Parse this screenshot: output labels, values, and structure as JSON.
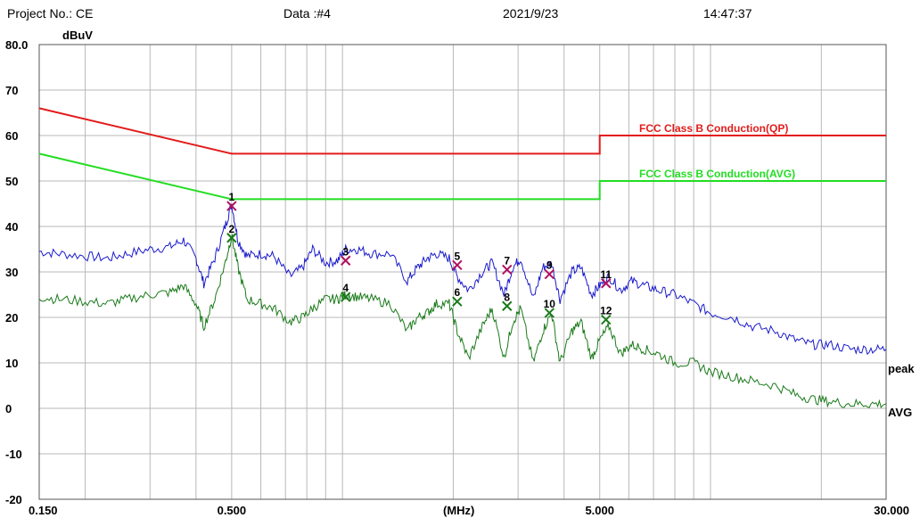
{
  "header": {
    "project": "Project No.: CE",
    "data": "Data :#4",
    "date": "2021/9/23",
    "time": "14:47:37"
  },
  "colors": {
    "qp": "#e31b1b",
    "avg": "#22dd22",
    "peak": "#1a1acc",
    "avg_trace": "#1a7a1a",
    "marker_peak": "#b01060",
    "grid": "#b8b8b8"
  },
  "chart_data": {
    "type": "line",
    "title": "",
    "ylabel": "dBuV",
    "xlabel": "(MHz)",
    "xscale": "log",
    "xlim": [
      0.15,
      30
    ],
    "ylim": [
      -20,
      80
    ],
    "y_ticks": [
      "80.0",
      "70",
      "60",
      "50",
      "40",
      "30",
      "20",
      "10",
      "0",
      "-10",
      "-20"
    ],
    "x_ticks": [
      "0.150",
      "0.500",
      "5.000",
      "30.000"
    ],
    "grid": true,
    "limits": [
      {
        "name": "FCC Class B Conduction(QP)",
        "x": [
          0.15,
          0.5,
          5,
          5,
          30
        ],
        "y": [
          66,
          56,
          56,
          60,
          60
        ]
      },
      {
        "name": "FCC Class B Conduction(AVG)",
        "x": [
          0.15,
          0.5,
          5,
          5,
          30
        ],
        "y": [
          56,
          46,
          46,
          50,
          50
        ]
      }
    ],
    "series": [
      {
        "name": "peak",
        "x": [
          0.15,
          0.17,
          0.2,
          0.23,
          0.26,
          0.3,
          0.34,
          0.37,
          0.4,
          0.42,
          0.45,
          0.48,
          0.5,
          0.52,
          0.55,
          0.6,
          0.65,
          0.72,
          0.78,
          0.83,
          0.9,
          0.97,
          1.02,
          1.1,
          1.2,
          1.35,
          1.5,
          1.6,
          1.7,
          1.8,
          1.95,
          2.05,
          2.2,
          2.4,
          2.55,
          2.75,
          2.9,
          3.05,
          3.3,
          3.5,
          3.7,
          3.9,
          4.2,
          4.45,
          4.75,
          5.0,
          5.3,
          5.7,
          6.1,
          6.6,
          7.2,
          8.0,
          9.0,
          10.0,
          11.5,
          13.0,
          15.0,
          17.0,
          19.0,
          21.0,
          24.0,
          27.0,
          30.0
        ],
        "values": [
          34.5,
          34,
          33.5,
          33,
          34,
          35,
          35.5,
          37,
          33,
          27.5,
          33,
          40,
          45,
          37,
          33.5,
          34,
          33.5,
          29,
          31,
          35,
          32,
          32.5,
          35,
          35,
          34,
          34,
          28,
          31,
          33,
          34,
          33,
          29,
          26,
          30,
          32,
          25,
          31,
          33,
          24,
          31,
          32,
          24,
          30,
          31,
          25,
          27,
          29,
          26,
          28,
          27,
          26,
          25,
          23,
          21,
          20,
          18,
          17,
          15,
          14,
          14,
          13,
          13,
          13
        ]
      },
      {
        "name": "AVG",
        "x": [
          0.15,
          0.17,
          0.2,
          0.23,
          0.26,
          0.3,
          0.34,
          0.37,
          0.4,
          0.42,
          0.45,
          0.48,
          0.5,
          0.52,
          0.55,
          0.6,
          0.65,
          0.72,
          0.78,
          0.83,
          0.9,
          0.97,
          1.02,
          1.1,
          1.2,
          1.35,
          1.5,
          1.6,
          1.7,
          1.8,
          1.95,
          2.05,
          2.2,
          2.4,
          2.55,
          2.75,
          2.9,
          3.05,
          3.3,
          3.5,
          3.7,
          3.9,
          4.2,
          4.45,
          4.75,
          5.0,
          5.3,
          5.7,
          6.1,
          6.6,
          7.2,
          8.0,
          9.0,
          10.0,
          11.5,
          13.0,
          15.0,
          17.0,
          19.0,
          21.0,
          24.0,
          27.0,
          30.0
        ],
        "values": [
          24.5,
          24,
          23.5,
          23,
          24,
          25,
          25.5,
          27,
          23,
          18,
          24,
          32,
          38,
          31,
          24,
          23,
          22,
          19,
          20,
          22,
          24,
          24,
          25,
          24.5,
          24,
          23,
          17,
          20,
          21,
          23,
          23,
          17,
          11,
          18,
          22,
          11,
          19,
          22,
          10,
          17,
          21,
          10,
          17,
          19,
          11,
          15,
          18,
          12,
          14,
          13,
          12,
          10,
          10,
          8,
          7,
          6,
          5,
          3,
          2,
          1.5,
          1,
          1,
          1
        ]
      }
    ],
    "markers": [
      {
        "label": "1",
        "x": 0.5,
        "y": 44.5,
        "series": "peak"
      },
      {
        "label": "2",
        "x": 0.5,
        "y": 37.5,
        "series": "AVG"
      },
      {
        "label": "3",
        "x": 1.02,
        "y": 32.5,
        "series": "peak"
      },
      {
        "label": "4",
        "x": 1.02,
        "y": 24.5,
        "series": "AVG"
      },
      {
        "label": "5",
        "x": 2.05,
        "y": 31.5,
        "series": "peak"
      },
      {
        "label": "6",
        "x": 2.05,
        "y": 23.5,
        "series": "AVG"
      },
      {
        "label": "7",
        "x": 2.8,
        "y": 30.5,
        "series": "peak"
      },
      {
        "label": "8",
        "x": 2.8,
        "y": 22.5,
        "series": "AVG"
      },
      {
        "label": "9",
        "x": 3.65,
        "y": 29.5,
        "series": "peak"
      },
      {
        "label": "10",
        "x": 3.65,
        "y": 21,
        "series": "AVG"
      },
      {
        "label": "11",
        "x": 5.2,
        "y": 27.5,
        "series": "peak"
      },
      {
        "label": "12",
        "x": 5.2,
        "y": 19.5,
        "series": "AVG"
      }
    ]
  }
}
